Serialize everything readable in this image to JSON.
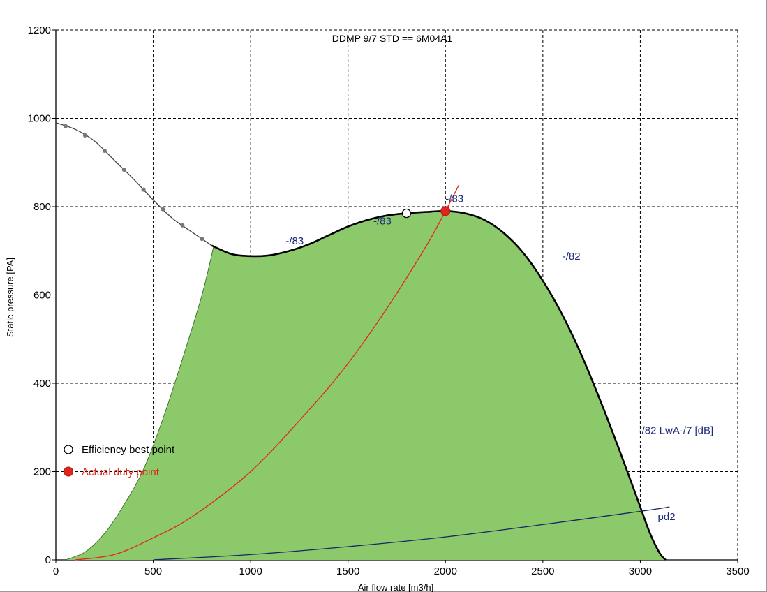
{
  "chart_data": {
    "type": "line",
    "title": "DDMP 9/7 STD == 6M04A1",
    "xlabel": "Air flow rate [m3/h]",
    "ylabel": "Static pressure [PA]",
    "xlim": [
      0,
      3500
    ],
    "ylim": [
      0,
      1200
    ],
    "x_ticks": [
      0,
      500,
      1000,
      1500,
      2000,
      2500,
      3000,
      3500
    ],
    "y_ticks": [
      0,
      200,
      400,
      600,
      800,
      1000,
      1200
    ],
    "grid": true,
    "grid_style": "dashed",
    "colors": {
      "fill": "#8cc96a",
      "fan_curve": "#000000",
      "fan_curve_low_range": "#444444",
      "system_curve": "#e0261c",
      "dynamic_curve": "#1a2466",
      "annotation": "#1f2a7a",
      "duty_point": "#e0261c"
    },
    "series": [
      {
        "name": "fan curve",
        "x": [
          0,
          100,
          200,
          300,
          400,
          500,
          600,
          700,
          800,
          900,
          1000,
          1100,
          1200,
          1300,
          1400,
          1500,
          1600,
          1700,
          1800,
          1900,
          2000,
          2100,
          2200,
          2300,
          2400,
          2500,
          2600,
          2700,
          2800,
          2900,
          3000,
          3050,
          3100,
          3130
        ],
        "y": [
          990,
          975,
          948,
          905,
          862,
          815,
          773,
          742,
          712,
          693,
          688,
          690,
          700,
          715,
          735,
          755,
          770,
          780,
          785,
          788,
          790,
          785,
          770,
          740,
          695,
          632,
          555,
          462,
          355,
          240,
          120,
          60,
          15,
          0
        ]
      },
      {
        "name": "system curve",
        "x": [
          100,
          300,
          500,
          700,
          1000,
          1300,
          1500,
          1700,
          1900,
          2000,
          2070
        ],
        "y": [
          0,
          12,
          50,
          98,
          200,
          340,
          445,
          570,
          710,
          790,
          850
        ]
      },
      {
        "name": "pd2",
        "x": [
          500,
          1000,
          1500,
          2000,
          2500,
          3000,
          3150
        ],
        "y": [
          0,
          12,
          30,
          52,
          80,
          110,
          120
        ]
      },
      {
        "name": "operating range lower bound",
        "x": [
          50,
          150,
          250,
          350,
          450,
          550,
          650,
          750,
          810
        ],
        "y": [
          0,
          18,
          60,
          125,
          205,
          320,
          455,
          600,
          710
        ]
      }
    ],
    "markers_on_low_range": [
      50,
      150,
      250,
      350,
      450,
      550,
      650,
      750
    ],
    "points": {
      "efficiency_best": {
        "x": 1800,
        "y": 785
      },
      "actual_duty": {
        "x": 2000,
        "y": 790
      },
      "legend_duty_marker": {
        "x": 0,
        "y": 200
      }
    },
    "annotations": [
      {
        "text": "-/83",
        "x": 1180,
        "y": 715
      },
      {
        "text": "-/83",
        "x": 1630,
        "y": 760
      },
      {
        "text": "-/83",
        "x": 2000,
        "y": 810
      },
      {
        "text": "-/82",
        "x": 2600,
        "y": 680
      },
      {
        "text": "-/82  LwA-/7 [dB]",
        "x": 2990,
        "y": 285
      },
      {
        "text": "pd2",
        "x": 3090,
        "y": 90
      }
    ],
    "legend": {
      "position": "bottom-left",
      "items": [
        {
          "label": "Efficiency best point",
          "marker": "open-circle",
          "color": "#000000"
        },
        {
          "label": "Actual duty point",
          "marker": "filled-circle",
          "color": "#e0261c"
        }
      ]
    }
  }
}
